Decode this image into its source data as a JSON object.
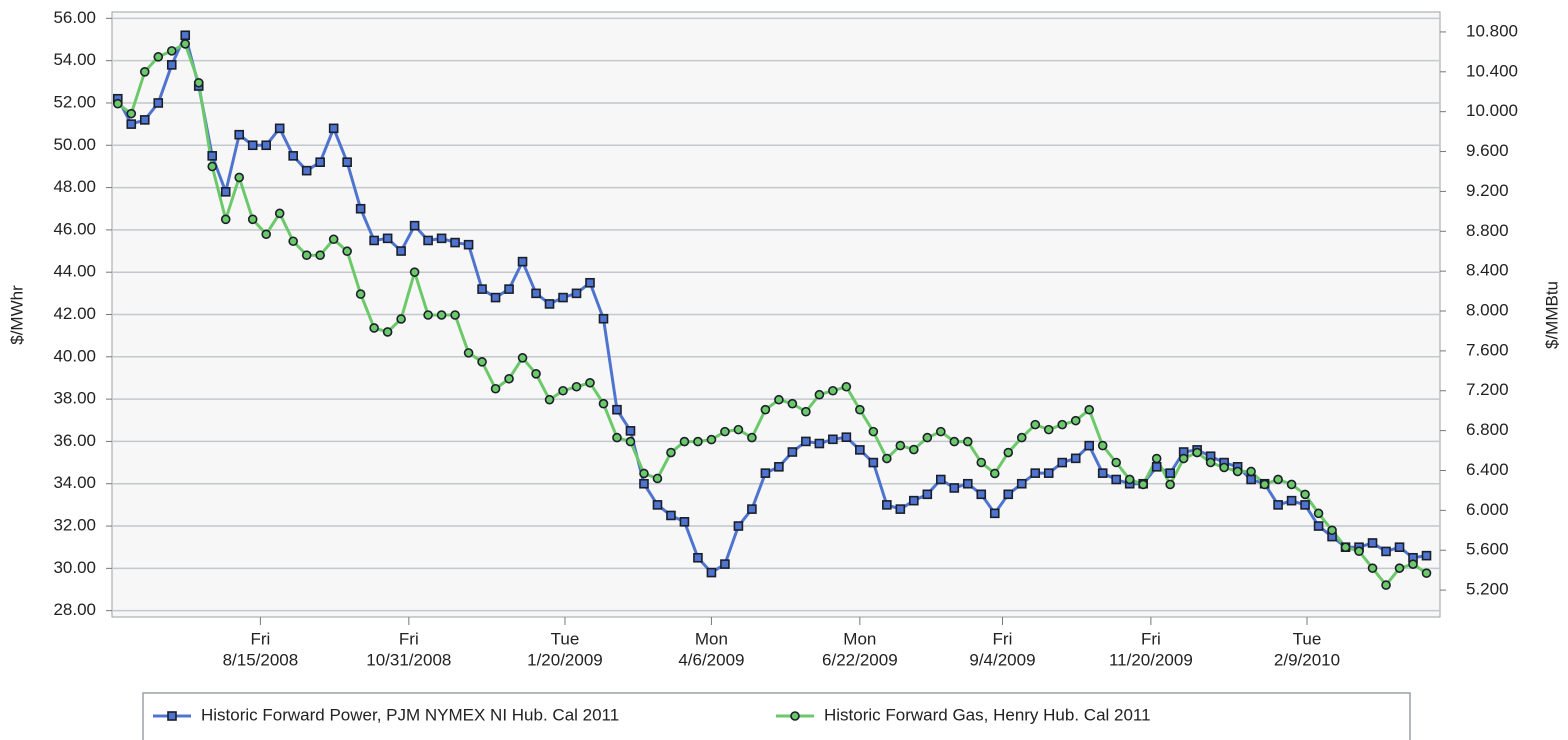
{
  "chart_data": {
    "type": "line",
    "y_label": "$/MWhr",
    "y2_label": "$/MMBtu",
    "xlim": [
      "5/30/2008",
      "4/19/2010"
    ],
    "xticks": [
      {
        "value": "8/15/2008",
        "label": "Fri"
      },
      {
        "value": "10/31/2008",
        "label": "Fri"
      },
      {
        "value": "1/20/2009",
        "label": "Tue"
      },
      {
        "value": "4/6/2009",
        "label": "Mon"
      },
      {
        "value": "6/22/2009",
        "label": "Mon"
      },
      {
        "value": "9/4/2009",
        "label": "Fri"
      },
      {
        "value": "11/20/2009",
        "label": "Fri"
      },
      {
        "value": "2/9/2010",
        "label": "Tue"
      }
    ],
    "ylim": [
      27.7,
      56.3
    ],
    "yticks": [
      {
        "value": 28,
        "label": "28.00"
      },
      {
        "value": 30,
        "label": "30.00"
      },
      {
        "value": 32,
        "label": "32.00"
      },
      {
        "value": 34,
        "label": "34.00"
      },
      {
        "value": 36,
        "label": "36.00"
      },
      {
        "value": 38,
        "label": "38.00"
      },
      {
        "value": 40,
        "label": "40.00"
      },
      {
        "value": 42,
        "label": "42.00"
      },
      {
        "value": 44,
        "label": "44.00"
      },
      {
        "value": 46,
        "label": "46.00"
      },
      {
        "value": 48,
        "label": "48.00"
      },
      {
        "value": 50,
        "label": "50.00"
      },
      {
        "value": 52,
        "label": "52.00"
      },
      {
        "value": 54,
        "label": "54.00"
      },
      {
        "value": 56,
        "label": "56.00"
      }
    ],
    "y2lim": [
      4.93,
      11.0
    ],
    "y2ticks": [
      {
        "value": 5.2,
        "label": "5.200"
      },
      {
        "value": 5.6,
        "label": "5.600"
      },
      {
        "value": 6.0,
        "label": "6.000"
      },
      {
        "value": 6.4,
        "label": "6.400"
      },
      {
        "value": 6.8,
        "label": "6.800"
      },
      {
        "value": 7.2,
        "label": "7.200"
      },
      {
        "value": 7.6,
        "label": "7.600"
      },
      {
        "value": 8.0,
        "label": "8.000"
      },
      {
        "value": 8.4,
        "label": "8.400"
      },
      {
        "value": 8.8,
        "label": "8.800"
      },
      {
        "value": 9.2,
        "label": "9.200"
      },
      {
        "value": 9.6,
        "label": "9.600"
      },
      {
        "value": 10.0,
        "label": "10.000"
      },
      {
        "value": 10.4,
        "label": "10.400"
      },
      {
        "value": 10.8,
        "label": "10.800"
      }
    ],
    "grid": true,
    "legend": "bottom",
    "x": [
      "6/2/2008",
      "6/9/2008",
      "6/16/2008",
      "6/23/2008",
      "6/30/2008",
      "7/7/2008",
      "7/14/2008",
      "7/21/2008",
      "7/28/2008",
      "8/4/2008",
      "8/11/2008",
      "8/18/2008",
      "8/25/2008",
      "9/1/2008",
      "9/8/2008",
      "9/15/2008",
      "9/22/2008",
      "9/29/2008",
      "10/6/2008",
      "10/13/2008",
      "10/20/2008",
      "10/27/2008",
      "11/3/2008",
      "11/10/2008",
      "11/17/2008",
      "11/24/2008",
      "12/1/2008",
      "12/8/2008",
      "12/15/2008",
      "12/22/2008",
      "12/29/2008",
      "1/5/2009",
      "1/12/2009",
      "1/19/2009",
      "1/26/2009",
      "2/2/2009",
      "2/9/2009",
      "2/16/2009",
      "2/23/2009",
      "3/2/2009",
      "3/9/2009",
      "3/16/2009",
      "3/23/2009",
      "3/30/2009",
      "4/6/2009",
      "4/13/2009",
      "4/20/2009",
      "4/27/2009",
      "5/4/2009",
      "5/11/2009",
      "5/18/2009",
      "5/25/2009",
      "6/1/2009",
      "6/8/2009",
      "6/15/2009",
      "6/22/2009",
      "6/29/2009",
      "7/6/2009",
      "7/13/2009",
      "7/20/2009",
      "7/27/2009",
      "8/3/2009",
      "8/10/2009",
      "8/17/2009",
      "8/24/2009",
      "8/31/2009",
      "9/7/2009",
      "9/14/2009",
      "9/21/2009",
      "9/28/2009",
      "10/5/2009",
      "10/12/2009",
      "10/19/2009",
      "10/26/2009",
      "11/2/2009",
      "11/9/2009",
      "11/16/2009",
      "11/23/2009",
      "11/30/2009",
      "12/7/2009",
      "12/14/2009",
      "12/21/2009",
      "12/28/2009",
      "1/4/2010",
      "1/11/2010",
      "1/18/2010",
      "1/25/2010",
      "2/1/2010",
      "2/8/2010",
      "2/15/2010",
      "2/22/2010",
      "3/1/2010",
      "3/8/2010",
      "3/15/2010",
      "3/22/2010",
      "3/29/2010",
      "4/5/2010",
      "4/12/2010"
    ],
    "series": [
      {
        "name": "Historic Forward Power, PJM NYMEX NI Hub. Cal 2011",
        "color": "#4f74d0",
        "marker": "square",
        "axis": "y",
        "values": [
          52.2,
          51.0,
          51.2,
          52.0,
          53.8,
          55.2,
          52.8,
          49.5,
          47.8,
          50.5,
          50.0,
          50.0,
          50.8,
          49.5,
          48.8,
          49.2,
          50.8,
          49.2,
          47.0,
          45.5,
          45.6,
          45.0,
          46.2,
          45.5,
          45.6,
          45.4,
          45.3,
          43.2,
          42.8,
          43.2,
          44.5,
          43.0,
          42.5,
          42.8,
          43.0,
          43.5,
          41.8,
          37.5,
          36.5,
          34.0,
          33.0,
          32.5,
          32.2,
          30.5,
          29.8,
          30.2,
          32.0,
          32.8,
          34.5,
          34.8,
          35.5,
          36.0,
          35.9,
          36.1,
          36.2,
          35.6,
          35.0,
          33.0,
          32.8,
          33.2,
          33.5,
          34.2,
          33.8,
          34.0,
          33.5,
          32.6,
          33.5,
          34.0,
          34.5,
          34.5,
          35.0,
          35.2,
          35.8,
          34.5,
          34.2,
          34.0,
          34.0,
          34.8,
          34.5,
          35.5,
          35.6,
          35.3,
          35.0,
          34.8,
          34.2,
          34.0,
          33.0,
          33.2,
          33.0,
          32.0,
          31.5,
          31.0,
          31.0,
          31.2,
          30.8,
          31.0,
          30.5,
          30.6
        ]
      },
      {
        "name": "Historic Forward Gas, Henry Hub. Cal 2011",
        "color": "#6cc96a",
        "marker": "circle",
        "axis": "y2",
        "values": [
          10.08,
          9.98,
          10.4,
          10.55,
          10.61,
          10.68,
          10.29,
          9.45,
          8.92,
          9.34,
          8.92,
          8.77,
          8.98,
          8.7,
          8.56,
          8.56,
          8.72,
          8.6,
          8.17,
          7.83,
          7.79,
          7.92,
          8.39,
          7.96,
          7.96,
          7.96,
          7.58,
          7.49,
          7.22,
          7.32,
          7.53,
          7.37,
          7.11,
          7.2,
          7.24,
          7.28,
          7.07,
          6.73,
          6.69,
          6.37,
          6.32,
          6.58,
          6.69,
          6.69,
          6.71,
          6.79,
          6.81,
          6.73,
          7.01,
          7.11,
          7.07,
          6.99,
          7.16,
          7.2,
          7.24,
          7.01,
          6.79,
          6.52,
          6.65,
          6.61,
          6.73,
          6.79,
          6.69,
          6.69,
          6.48,
          6.37,
          6.58,
          6.73,
          6.86,
          6.81,
          6.86,
          6.9,
          7.01,
          6.65,
          6.48,
          6.31,
          6.26,
          6.52,
          6.26,
          6.52,
          6.58,
          6.48,
          6.43,
          6.39,
          6.39,
          6.26,
          6.31,
          6.26,
          6.16,
          5.97,
          5.8,
          5.63,
          5.59,
          5.42,
          5.25,
          5.42,
          5.46,
          5.37
        ]
      }
    ]
  }
}
